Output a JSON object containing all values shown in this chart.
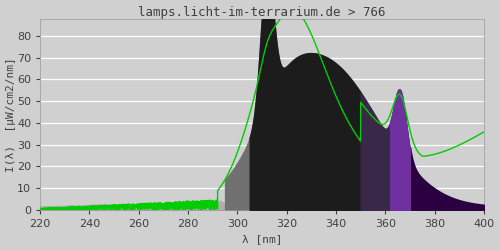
{
  "title": "lamps.licht-im-terrarium.de > 766",
  "xlabel": "λ [nm]",
  "ylabel": "I(λ)  [μW/cm2/nm]",
  "xlim": [
    220,
    400
  ],
  "ylim": [
    0,
    88
  ],
  "yticks": [
    0,
    10,
    20,
    30,
    40,
    50,
    60,
    70,
    80
  ],
  "xticks": [
    220,
    240,
    260,
    280,
    300,
    320,
    340,
    360,
    380,
    400
  ],
  "bg_color": "#d0d0d0",
  "grid_color": "#c0c0c0",
  "title_color": "#404040",
  "title_fontsize": 9,
  "label_fontsize": 8,
  "tick_fontsize": 8,
  "font_family": "monospace",
  "line_color": "#00cc00",
  "line_width": 1.0,
  "noise_seed": 42
}
